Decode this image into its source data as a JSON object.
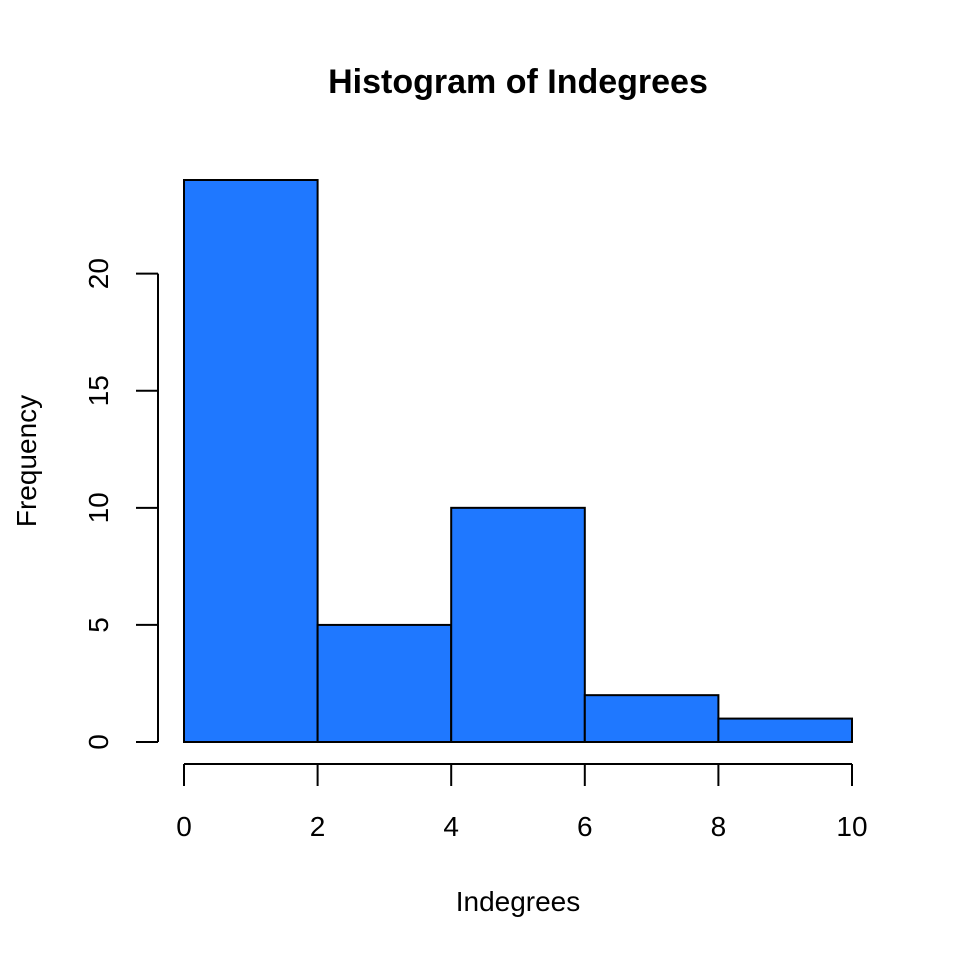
{
  "chart_data": {
    "type": "bar",
    "title": "Histogram of Indegrees",
    "xlabel": "Indegrees",
    "ylabel": "Frequency",
    "bins": [
      {
        "from": 0,
        "to": 2,
        "value": 24
      },
      {
        "from": 2,
        "to": 4,
        "value": 5
      },
      {
        "from": 4,
        "to": 6,
        "value": 10
      },
      {
        "from": 6,
        "to": 8,
        "value": 2
      },
      {
        "from": 8,
        "to": 10,
        "value": 1
      }
    ],
    "x_ticks": [
      0,
      2,
      4,
      6,
      8,
      10
    ],
    "y_ticks": [
      0,
      5,
      10,
      15,
      20
    ],
    "xlim": [
      0,
      10
    ],
    "ylim": [
      0,
      24
    ],
    "grid": false,
    "bar_color": "#1f78ff",
    "edge_color": "#000000"
  }
}
